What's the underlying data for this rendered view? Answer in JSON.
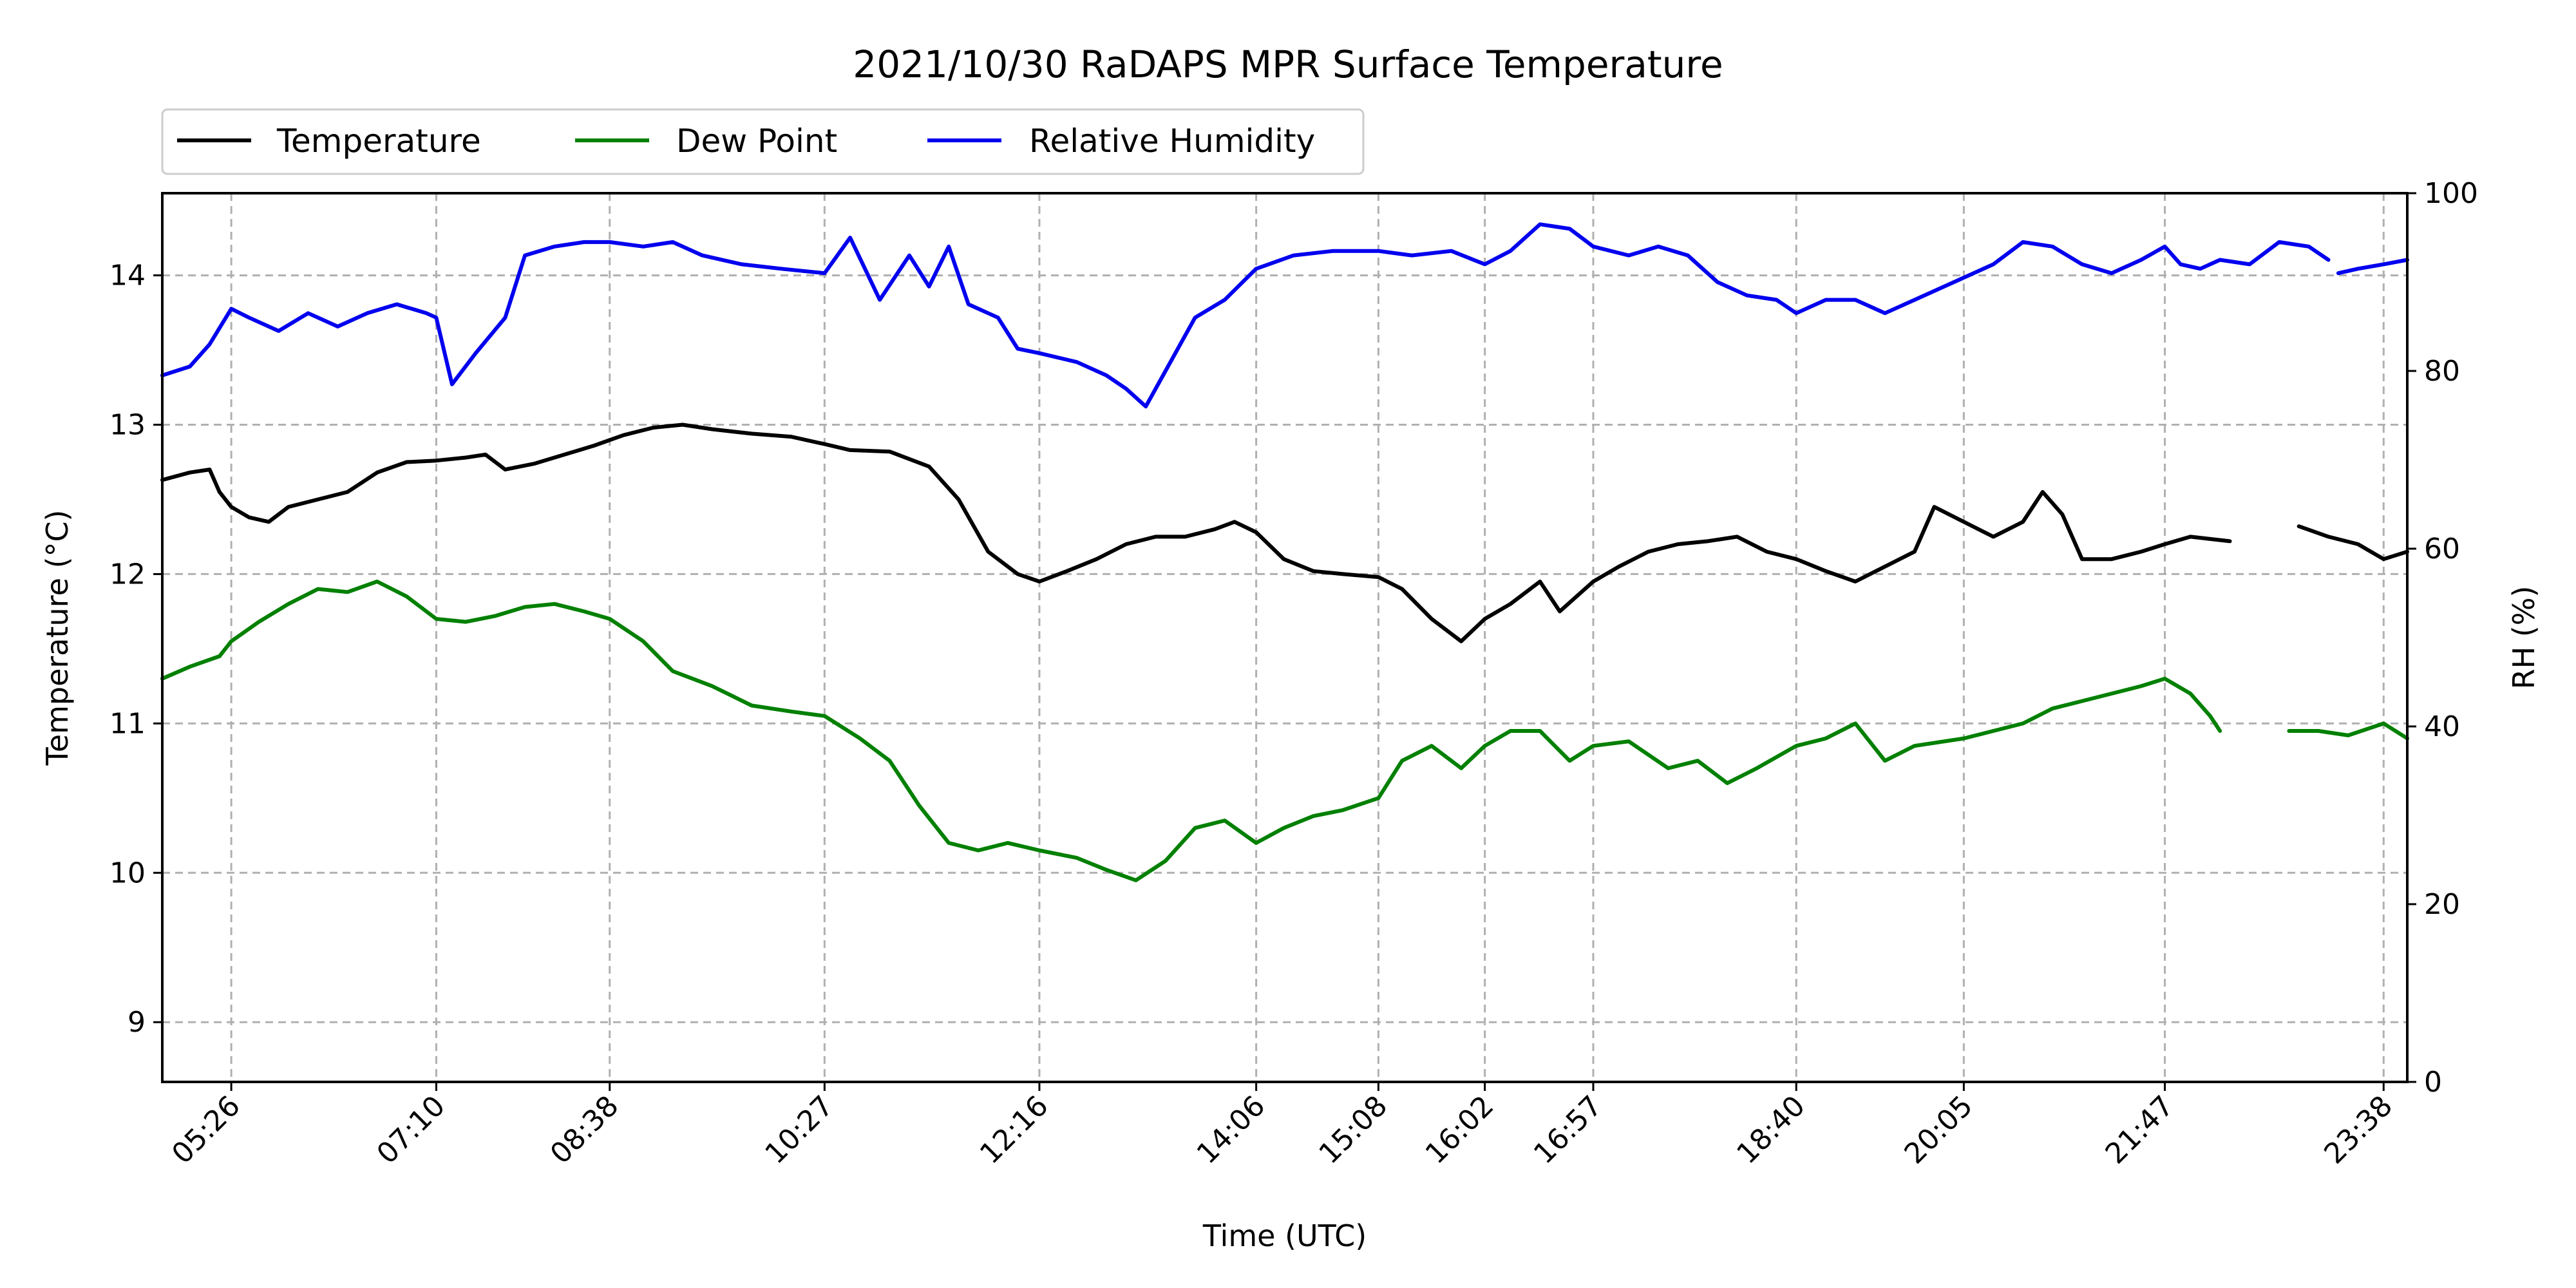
{
  "chart_data": {
    "type": "line",
    "title": "2021/10/30 RaDAPS MPR Surface Temperature",
    "xlabel": "Time (UTC)",
    "ylabel": "Temperature ($^\\circ$C)",
    "ylabel_display": "Temperature (°C)",
    "y2label": "RH (%)",
    "xlim": [
      "04:51",
      "23:50"
    ],
    "ylim": [
      8.6,
      14.55
    ],
    "y2lim": [
      0,
      100
    ],
    "grid": true,
    "legend_position": "top-left, above plot",
    "x_ticks": [
      "05:26",
      "07:10",
      "08:38",
      "10:27",
      "12:16",
      "14:06",
      "15:08",
      "16:02",
      "16:57",
      "18:40",
      "20:05",
      "21:47",
      "23:38"
    ],
    "y_ticks": [
      9,
      10,
      11,
      12,
      13,
      14
    ],
    "y2_ticks": [
      0,
      20,
      40,
      60,
      80,
      100
    ],
    "series": [
      {
        "name": "Temperature",
        "axis": "left",
        "color": "#000000",
        "points": [
          [
            "04:51",
            12.63
          ],
          [
            "05:05",
            12.68
          ],
          [
            "05:15",
            12.7
          ],
          [
            "05:20",
            12.55
          ],
          [
            "05:26",
            12.45
          ],
          [
            "05:35",
            12.38
          ],
          [
            "05:45",
            12.35
          ],
          [
            "05:55",
            12.45
          ],
          [
            "06:10",
            12.5
          ],
          [
            "06:25",
            12.55
          ],
          [
            "06:40",
            12.68
          ],
          [
            "06:55",
            12.75
          ],
          [
            "07:10",
            12.76
          ],
          [
            "07:25",
            12.78
          ],
          [
            "07:35",
            12.8
          ],
          [
            "07:45",
            12.7
          ],
          [
            "08:00",
            12.74
          ],
          [
            "08:15",
            12.8
          ],
          [
            "08:30",
            12.86
          ],
          [
            "08:45",
            12.93
          ],
          [
            "09:00",
            12.98
          ],
          [
            "09:15",
            13.0
          ],
          [
            "09:30",
            12.97
          ],
          [
            "09:50",
            12.94
          ],
          [
            "10:10",
            12.92
          ],
          [
            "10:27",
            12.87
          ],
          [
            "10:40",
            12.83
          ],
          [
            "11:00",
            12.82
          ],
          [
            "11:20",
            12.72
          ],
          [
            "11:35",
            12.5
          ],
          [
            "11:50",
            12.15
          ],
          [
            "12:05",
            12.0
          ],
          [
            "12:16",
            11.95
          ],
          [
            "12:30",
            12.02
          ],
          [
            "12:45",
            12.1
          ],
          [
            "13:00",
            12.2
          ],
          [
            "13:15",
            12.25
          ],
          [
            "13:30",
            12.25
          ],
          [
            "13:45",
            12.3
          ],
          [
            "13:55",
            12.35
          ],
          [
            "14:06",
            12.28
          ],
          [
            "14:20",
            12.1
          ],
          [
            "14:35",
            12.02
          ],
          [
            "14:50",
            12.0
          ],
          [
            "15:08",
            11.98
          ],
          [
            "15:20",
            11.9
          ],
          [
            "15:35",
            11.7
          ],
          [
            "15:50",
            11.55
          ],
          [
            "16:02",
            11.7
          ],
          [
            "16:15",
            11.8
          ],
          [
            "16:30",
            11.95
          ],
          [
            "16:40",
            11.75
          ],
          [
            "16:57",
            11.95
          ],
          [
            "17:10",
            12.05
          ],
          [
            "17:25",
            12.15
          ],
          [
            "17:40",
            12.2
          ],
          [
            "17:55",
            12.22
          ],
          [
            "18:10",
            12.25
          ],
          [
            "18:25",
            12.15
          ],
          [
            "18:40",
            12.1
          ],
          [
            "18:55",
            12.02
          ],
          [
            "19:10",
            11.95
          ],
          [
            "19:25",
            12.05
          ],
          [
            "19:40",
            12.15
          ],
          [
            "19:50",
            12.45
          ],
          [
            "20:05",
            12.35
          ],
          [
            "20:20",
            12.25
          ],
          [
            "20:35",
            12.35
          ],
          [
            "20:45",
            12.55
          ],
          [
            "20:55",
            12.4
          ],
          [
            "21:05",
            12.1
          ],
          [
            "21:20",
            12.1
          ],
          [
            "21:35",
            12.15
          ],
          [
            "21:47",
            12.2
          ],
          [
            "22:00",
            12.25
          ],
          [
            "22:20",
            12.22
          ],
          null,
          [
            "22:55",
            12.32
          ],
          [
            "23:10",
            12.25
          ],
          [
            "23:25",
            12.2
          ],
          [
            "23:38",
            12.1
          ],
          [
            "23:50",
            12.15
          ]
        ]
      },
      {
        "name": "Dew Point",
        "axis": "left",
        "color": "#008000",
        "points": [
          [
            "04:51",
            11.3
          ],
          [
            "05:05",
            11.38
          ],
          [
            "05:20",
            11.45
          ],
          [
            "05:26",
            11.55
          ],
          [
            "05:40",
            11.68
          ],
          [
            "05:55",
            11.8
          ],
          [
            "06:10",
            11.9
          ],
          [
            "06:25",
            11.88
          ],
          [
            "06:40",
            11.95
          ],
          [
            "06:55",
            11.85
          ],
          [
            "07:10",
            11.7
          ],
          [
            "07:25",
            11.68
          ],
          [
            "07:40",
            11.72
          ],
          [
            "07:55",
            11.78
          ],
          [
            "08:10",
            11.8
          ],
          [
            "08:25",
            11.75
          ],
          [
            "08:38",
            11.7
          ],
          [
            "08:55",
            11.55
          ],
          [
            "09:10",
            11.35
          ],
          [
            "09:30",
            11.25
          ],
          [
            "09:50",
            11.12
          ],
          [
            "10:10",
            11.08
          ],
          [
            "10:27",
            11.05
          ],
          [
            "10:45",
            10.9
          ],
          [
            "11:00",
            10.75
          ],
          [
            "11:15",
            10.45
          ],
          [
            "11:30",
            10.2
          ],
          [
            "11:45",
            10.15
          ],
          [
            "12:00",
            10.2
          ],
          [
            "12:16",
            10.15
          ],
          [
            "12:35",
            10.1
          ],
          [
            "12:50",
            10.02
          ],
          [
            "13:05",
            9.95
          ],
          [
            "13:20",
            10.08
          ],
          [
            "13:35",
            10.3
          ],
          [
            "13:50",
            10.35
          ],
          [
            "14:06",
            10.2
          ],
          [
            "14:20",
            10.3
          ],
          [
            "14:35",
            10.38
          ],
          [
            "14:50",
            10.42
          ],
          [
            "15:08",
            10.5
          ],
          [
            "15:20",
            10.75
          ],
          [
            "15:35",
            10.85
          ],
          [
            "15:50",
            10.7
          ],
          [
            "16:02",
            10.85
          ],
          [
            "16:15",
            10.95
          ],
          [
            "16:30",
            10.95
          ],
          [
            "16:45",
            10.75
          ],
          [
            "16:57",
            10.85
          ],
          [
            "17:15",
            10.88
          ],
          [
            "17:35",
            10.7
          ],
          [
            "17:50",
            10.75
          ],
          [
            "18:05",
            10.6
          ],
          [
            "18:20",
            10.7
          ],
          [
            "18:40",
            10.85
          ],
          [
            "18:55",
            10.9
          ],
          [
            "19:10",
            11.0
          ],
          [
            "19:25",
            10.75
          ],
          [
            "19:40",
            10.85
          ],
          [
            "20:05",
            10.9
          ],
          [
            "20:20",
            10.95
          ],
          [
            "20:35",
            11.0
          ],
          [
            "20:50",
            11.1
          ],
          [
            "21:05",
            11.15
          ],
          [
            "21:20",
            11.2
          ],
          [
            "21:35",
            11.25
          ],
          [
            "21:47",
            11.3
          ],
          [
            "22:00",
            11.2
          ],
          [
            "22:10",
            11.05
          ],
          [
            "22:15",
            10.95
          ],
          null,
          [
            "22:50",
            10.95
          ],
          [
            "23:05",
            10.95
          ],
          [
            "23:20",
            10.92
          ],
          [
            "23:38",
            11.0
          ],
          [
            "23:50",
            10.9
          ]
        ]
      },
      {
        "name": "Relative Humidity",
        "axis": "right",
        "color": "#0000ee",
        "points": [
          [
            "04:51",
            79.5
          ],
          [
            "05:05",
            80.5
          ],
          [
            "05:15",
            83.0
          ],
          [
            "05:26",
            87.0
          ],
          [
            "05:35",
            86.0
          ],
          [
            "05:50",
            84.5
          ],
          [
            "06:05",
            86.5
          ],
          [
            "06:20",
            85.0
          ],
          [
            "06:35",
            86.5
          ],
          [
            "06:50",
            87.5
          ],
          [
            "07:05",
            86.5
          ],
          [
            "07:10",
            86.0
          ],
          [
            "07:18",
            78.5
          ],
          [
            "07:30",
            82.0
          ],
          [
            "07:45",
            86.0
          ],
          [
            "07:55",
            93.0
          ],
          [
            "08:10",
            94.0
          ],
          [
            "08:25",
            94.5
          ],
          [
            "08:38",
            94.5
          ],
          [
            "08:55",
            94.0
          ],
          [
            "09:10",
            94.5
          ],
          [
            "09:25",
            93.0
          ],
          [
            "09:45",
            92.0
          ],
          [
            "10:05",
            91.5
          ],
          [
            "10:27",
            91.0
          ],
          [
            "10:40",
            95.0
          ],
          [
            "10:55",
            88.0
          ],
          [
            "11:10",
            93.0
          ],
          [
            "11:20",
            89.5
          ],
          [
            "11:30",
            94.0
          ],
          [
            "11:40",
            87.5
          ],
          [
            "11:55",
            86.0
          ],
          [
            "12:05",
            82.5
          ],
          [
            "12:16",
            82.0
          ],
          [
            "12:35",
            81.0
          ],
          [
            "12:50",
            79.5
          ],
          [
            "13:00",
            78.0
          ],
          [
            "13:10",
            76.0
          ],
          [
            "13:20",
            80.0
          ],
          [
            "13:35",
            86.0
          ],
          [
            "13:50",
            88.0
          ],
          [
            "14:06",
            91.5
          ],
          [
            "14:25",
            93.0
          ],
          [
            "14:45",
            93.5
          ],
          [
            "15:08",
            93.5
          ],
          [
            "15:25",
            93.0
          ],
          [
            "15:45",
            93.5
          ],
          [
            "16:02",
            92.0
          ],
          [
            "16:15",
            93.5
          ],
          [
            "16:30",
            96.5
          ],
          [
            "16:45",
            96.0
          ],
          [
            "16:57",
            94.0
          ],
          [
            "17:15",
            93.0
          ],
          [
            "17:30",
            94.0
          ],
          [
            "17:45",
            93.0
          ],
          [
            "18:00",
            90.0
          ],
          [
            "18:15",
            88.5
          ],
          [
            "18:30",
            88.0
          ],
          [
            "18:40",
            86.5
          ],
          [
            "18:55",
            88.0
          ],
          [
            "19:10",
            88.0
          ],
          [
            "19:25",
            86.5
          ],
          [
            "19:40",
            88.0
          ],
          [
            "20:05",
            90.5
          ],
          [
            "20:20",
            92.0
          ],
          [
            "20:35",
            94.5
          ],
          [
            "20:50",
            94.0
          ],
          [
            "21:05",
            92.0
          ],
          [
            "21:20",
            91.0
          ],
          [
            "21:35",
            92.5
          ],
          [
            "21:47",
            94.0
          ],
          [
            "21:55",
            92.0
          ],
          [
            "22:05",
            91.5
          ],
          [
            "22:15",
            92.5
          ],
          [
            "22:30",
            92.0
          ],
          [
            "22:45",
            94.5
          ],
          [
            "23:00",
            94.0
          ],
          [
            "23:10",
            92.5
          ],
          null,
          [
            "23:15",
            91.0
          ],
          [
            "23:25",
            91.5
          ],
          [
            "23:38",
            92.0
          ],
          [
            "23:50",
            92.5
          ]
        ]
      }
    ]
  }
}
